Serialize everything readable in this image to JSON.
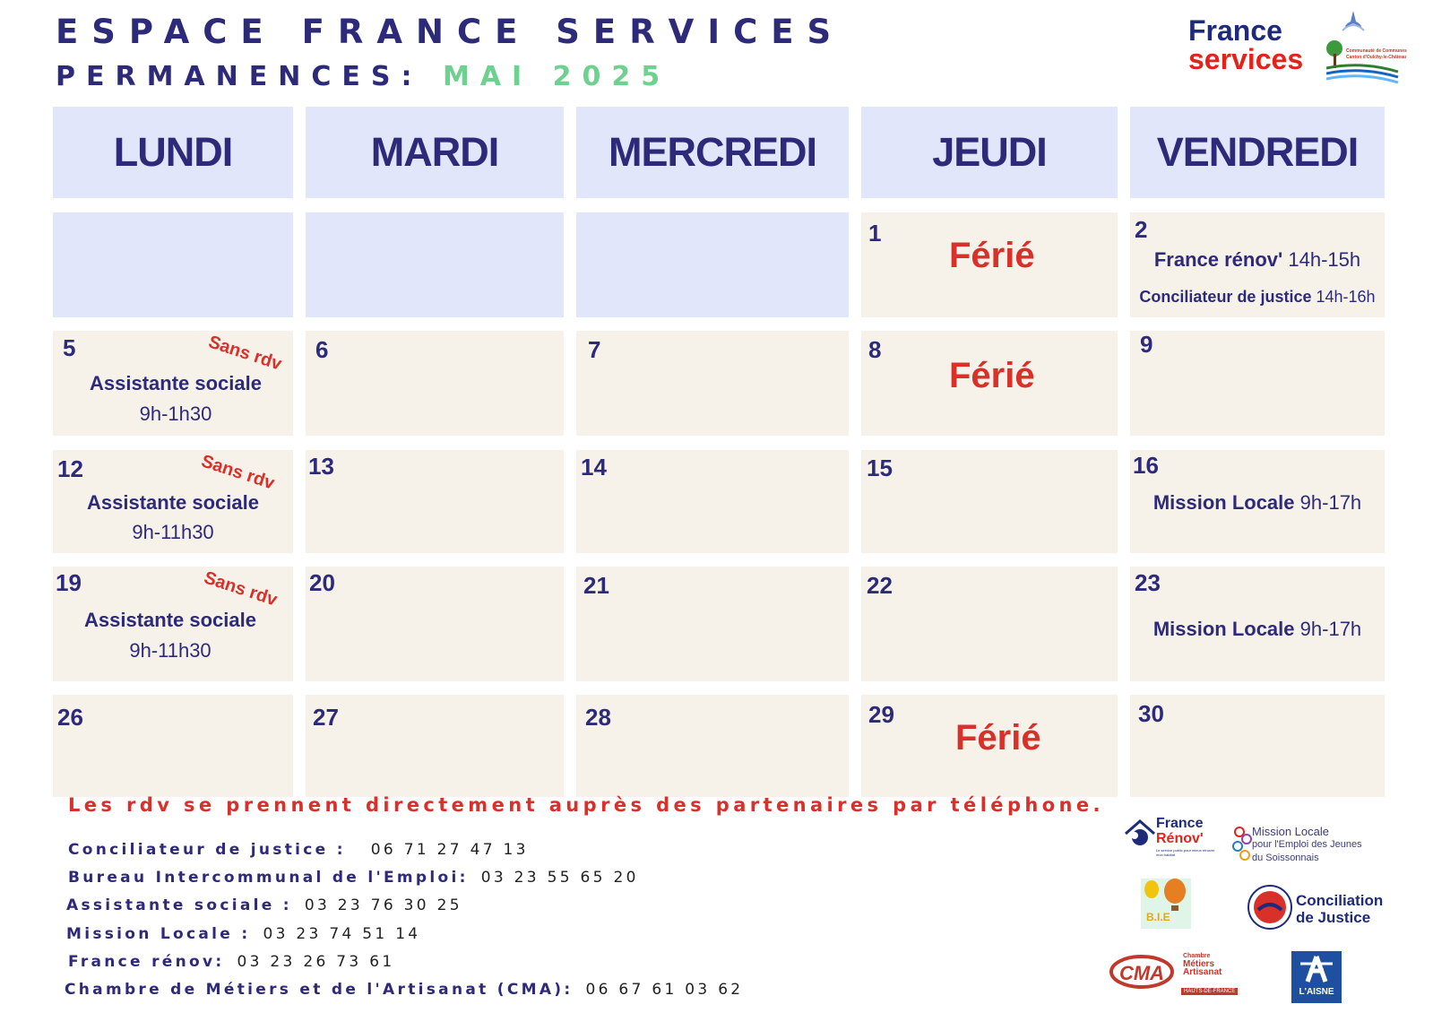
{
  "header": {
    "title": "ESPACE FRANCE SERVICES",
    "subtitle_prefix": "PERMANENCES:",
    "subtitle_month": "MAI 2025",
    "logo_line1": "France",
    "logo_line2": "services",
    "cc_logo_line1": "Communauté de Communes",
    "cc_logo_line2": "Canton d'Oulchy-le-Château"
  },
  "days": [
    "LUNDI",
    "MARDI",
    "MERCREDI",
    "JEUDI",
    "VENDREDI"
  ],
  "calendar": {
    "d1": "1",
    "ferie": "Férié",
    "d2": "2",
    "d2_e1_name": "France rénov'",
    "d2_e1_hours": "14h-15h",
    "d2_e2_name": "Conciliateur de justice",
    "d2_e2_hours": "14h-16h",
    "d5": "5",
    "sans_rdv": "Sans rdv",
    "assistante": "Assistante sociale",
    "d5_hours": "9h-1h30",
    "d6": "6",
    "d7": "7",
    "d8": "8",
    "d9": "9",
    "d12": "12",
    "d12_hours": "9h-11h30",
    "d13": "13",
    "d14": "14",
    "d15": "15",
    "d16": "16",
    "mission": "Mission Locale",
    "mission_hours": "9h-17h",
    "d19": "19",
    "d19_hours": "9h-11h30",
    "d20": "20",
    "d21": "21",
    "d22": "22",
    "d23": "23",
    "d26": "26",
    "d27": "27",
    "d28": "28",
    "d29": "29",
    "d30": "30"
  },
  "footer": {
    "notice": "Les rdv se prennent directement auprès des partenaires par téléphone.",
    "contacts": [
      {
        "label": "Conciliateur de justice :",
        "phone": "06 71 27 47 13"
      },
      {
        "label": "Bureau Intercommunal de l'Emploi:",
        "phone": "03 23 55 65 20"
      },
      {
        "label": "Assistante sociale :",
        "phone": "03 23 76 30 25"
      },
      {
        "label": "Mission Locale :",
        "phone": "03 23 74 51 14"
      },
      {
        "label": "France rénov:",
        "phone": "03 23 26 73 61"
      },
      {
        "label": "Chambre de Métiers et de l'Artisanat (CMA):",
        "phone": "06 67 61 03 62"
      }
    ]
  },
  "partners": {
    "renov_l1": "France",
    "renov_l2": "Rénov'",
    "renov_tag": "Le service public pour mieux rénover mon habitat",
    "ml_l1": "Mission Locale",
    "ml_l2": "pour l'Emploi des Jeunes",
    "ml_l3": "du Soissonnais",
    "bie": "B.I.E",
    "cj_l1": "Conciliation",
    "cj_l2": "de Justice",
    "cma": "CMA",
    "cma_l1": "Chambre",
    "cma_l2": "Métiers",
    "cma_l3": "Artisanat",
    "cma_region": "HAUTS-DE-FRANCE",
    "aisne": "L'AISNE"
  }
}
